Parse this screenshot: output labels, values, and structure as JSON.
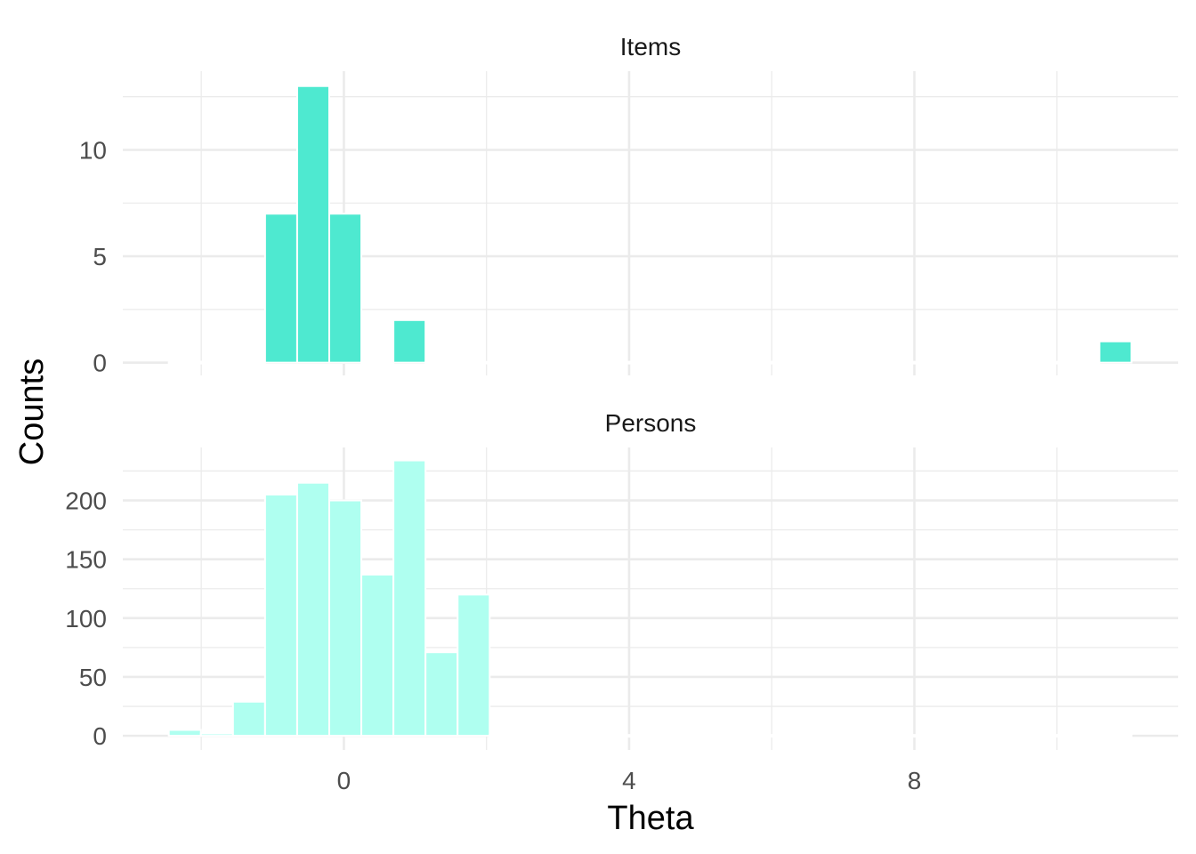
{
  "chart_data": {
    "type": "bar",
    "xlabel": "Theta",
    "ylabel": "Counts",
    "x_ticks": [
      0,
      4,
      8
    ],
    "xlim": [
      -3.1,
      11.7
    ],
    "bin_width": 0.45,
    "colors": {
      "items": "#4EE9D0",
      "persons": "#AFFFF0",
      "grid": "#EBEBEB"
    },
    "panels": [
      {
        "strip": "Items",
        "ylim": [
          -0.6,
          13.7
        ],
        "y_ticks": [
          0,
          5,
          10
        ],
        "bin_centers": [
          -2.23,
          -1.78,
          -1.33,
          -0.88,
          -0.43,
          0.02,
          0.47,
          0.92,
          1.37,
          1.82,
          2.27,
          2.72,
          3.17,
          3.62,
          4.07,
          4.52,
          4.97,
          5.42,
          5.87,
          6.32,
          6.77,
          7.22,
          7.67,
          8.12,
          8.57,
          9.02,
          9.47,
          9.92,
          10.37,
          10.82
        ],
        "counts": [
          0,
          0,
          0,
          7,
          13,
          7,
          0,
          2,
          0,
          0,
          0,
          0,
          0,
          0,
          0,
          0,
          0,
          0,
          0,
          0,
          0,
          0,
          0,
          0,
          0,
          0,
          0,
          0,
          0,
          1
        ]
      },
      {
        "strip": "Persons",
        "ylim": [
          -12,
          245
        ],
        "y_ticks": [
          0,
          50,
          100,
          150,
          200
        ],
        "bin_centers": [
          -2.23,
          -1.78,
          -1.33,
          -0.88,
          -0.43,
          0.02,
          0.47,
          0.92,
          1.37,
          1.82,
          2.27,
          2.72,
          3.17,
          3.62,
          4.07,
          4.52,
          4.97,
          5.42,
          5.87,
          6.32,
          6.77,
          7.22,
          7.67,
          8.12,
          8.57,
          9.02,
          9.47,
          9.92,
          10.37,
          10.82
        ],
        "counts": [
          5,
          2,
          29,
          205,
          215,
          200,
          137,
          234,
          71,
          120,
          0,
          0,
          0,
          0,
          0,
          0,
          0,
          0,
          0,
          0,
          0,
          0,
          0,
          0,
          0,
          0,
          0,
          0,
          0,
          0
        ]
      }
    ]
  }
}
